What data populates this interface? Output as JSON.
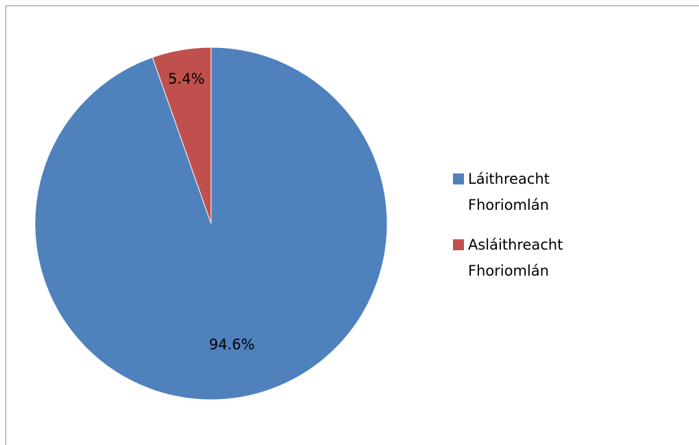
{
  "chart_data": {
    "type": "pie",
    "categories": [
      "Láithreacht Fhoriomlán",
      "Asláithreacht Fhoriomlán"
    ],
    "values": [
      94.6,
      5.4
    ],
    "value_labels": [
      "94.6%",
      "5.4%"
    ],
    "colors": [
      "#4f81bd",
      "#c0504d"
    ],
    "legend": "right"
  }
}
